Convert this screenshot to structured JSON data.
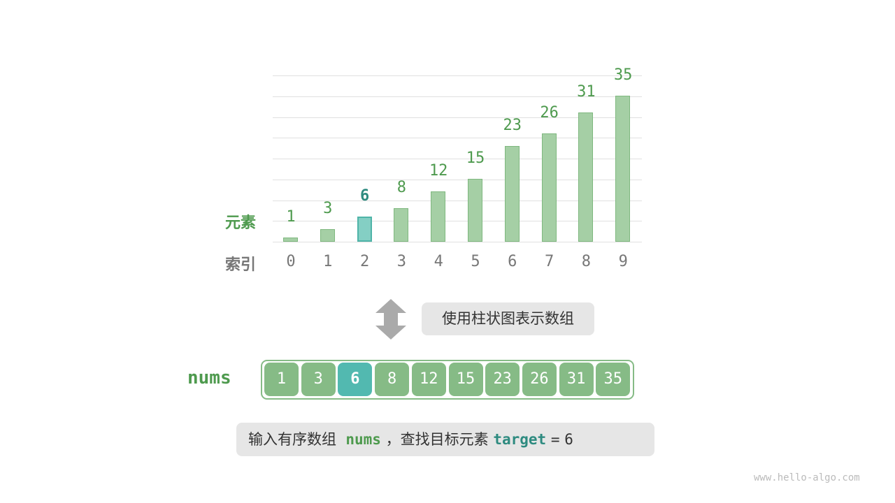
{
  "labels": {
    "elements": "元素",
    "index": "索引"
  },
  "chart_data": {
    "type": "bar",
    "categories": [
      "0",
      "1",
      "2",
      "3",
      "4",
      "5",
      "6",
      "7",
      "8",
      "9"
    ],
    "values": [
      1,
      3,
      6,
      8,
      12,
      15,
      23,
      26,
      31,
      35
    ],
    "highlight_index": 2,
    "ylim": [
      0,
      40
    ],
    "grid": true
  },
  "arrow_caption": "使用柱状图表示数组",
  "array": {
    "name": "nums",
    "values": [
      "1",
      "3",
      "6",
      "8",
      "12",
      "15",
      "23",
      "26",
      "31",
      "35"
    ],
    "highlight_index": 2
  },
  "footer": {
    "prefix": "输入有序数组",
    "nums": "nums",
    "mid": "，查找目标元素",
    "target": "target",
    "eq": "=",
    "value": "6"
  },
  "watermark": "www.hello-algo.com",
  "colors": {
    "bar": "#a5cfa5",
    "highlight": "#52b9b0",
    "green_text": "#4e9a4e",
    "teal_text": "#2e8b80"
  }
}
